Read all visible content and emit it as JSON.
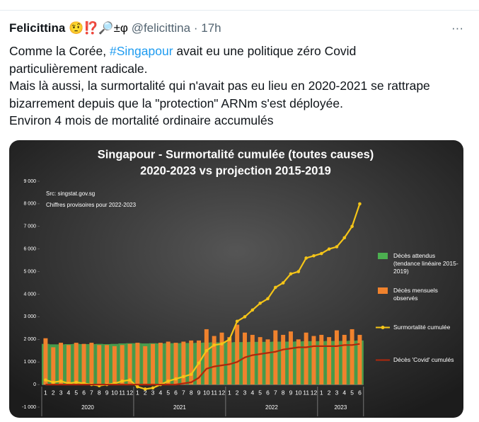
{
  "tweet": {
    "name": "Felicittina",
    "badges": "🤨⁉️🔎±φ",
    "handle": "@felicittina",
    "separator": "·",
    "time": "17h",
    "menu": "···",
    "paragraphs": [
      [
        "Comme la Corée, ",
        "#Singapour",
        " avait eu une politique zéro Covid particulièrement radicale."
      ],
      [
        "Mais là aussi, la surmortalité qui n'avait pas eu lieu en 2020-2021 se rattrape bizarrement depuis que la \"protection\" ARNm s'est déployée."
      ],
      [
        "Environ 4 mois de mortalité ordinaire accumulés"
      ]
    ]
  },
  "chart_data": {
    "type": "combo",
    "title": [
      "Singapour - Surmortalité cumulée (toutes causes)",
      "2020-2023 vs projection 2015-2019"
    ],
    "annotations": [
      "Src: singstat.gov.sg",
      "Chiffres provisoires pour 2022-2023"
    ],
    "categories": [
      "1",
      "2",
      "3",
      "4",
      "5",
      "6",
      "7",
      "8",
      "9",
      "10",
      "11",
      "12",
      "1",
      "2",
      "3",
      "4",
      "5",
      "6",
      "7",
      "8",
      "9",
      "10",
      "11",
      "12",
      "1",
      "2",
      "3",
      "4",
      "5",
      "6",
      "7",
      "8",
      "9",
      "10",
      "11",
      "12",
      "1",
      "2",
      "3",
      "4",
      "5",
      "6"
    ],
    "groups": [
      "2020",
      "2021",
      "2022",
      "2023"
    ],
    "ylim": [
      -1000,
      9000
    ],
    "yticks": [
      {
        "value": -1000,
        "label": "-1 000"
      },
      0,
      {
        "value": 1000,
        "label": "1 000"
      },
      {
        "value": 2000,
        "label": "2 000"
      },
      {
        "value": 3000,
        "label": "3 000"
      },
      {
        "value": 4000,
        "label": "4 000"
      },
      {
        "value": 5000,
        "label": "5 000"
      },
      {
        "value": 6000,
        "label": "6 000"
      },
      {
        "value": 7000,
        "label": "7 000"
      },
      {
        "value": 8000,
        "label": "8 000"
      },
      {
        "value": 9000,
        "label": "9 000"
      }
    ],
    "series": [
      {
        "name": "Décès attendus (tendance linéaire 2015-2019)",
        "type": "bar",
        "color": "#4caf50",
        "values": [
          1800,
          1780,
          1780,
          1790,
          1800,
          1790,
          1790,
          1800,
          1790,
          1800,
          1820,
          1830,
          1830,
          1820,
          1830,
          1820,
          1830,
          1830,
          1840,
          1840,
          1850,
          1860,
          1870,
          1870,
          1870,
          1880,
          1880,
          1890,
          1890,
          1890,
          1900,
          1900,
          1900,
          1910,
          1920,
          1920,
          1920,
          1930,
          1930,
          1930,
          1940,
          1950
        ]
      },
      {
        "name": "Décès mensuels observés",
        "type": "bar",
        "color": "#f0822d",
        "values": [
          2050,
          1650,
          1850,
          1750,
          1850,
          1800,
          1850,
          1750,
          1750,
          1700,
          1750,
          1800,
          1850,
          1700,
          1800,
          1850,
          1900,
          1850,
          1900,
          1950,
          1950,
          2450,
          2150,
          2300,
          2100,
          2650,
          2300,
          2200,
          2100,
          2000,
          2400,
          2200,
          2350,
          2000,
          2300,
          2150,
          2200,
          2100,
          2400,
          2200,
          2450,
          2200
        ]
      },
      {
        "name": "Surmortalité cumulée",
        "type": "line",
        "markers": true,
        "color": "#f5c518",
        "values": [
          200,
          100,
          150,
          50,
          100,
          50,
          0,
          -50,
          0,
          50,
          150,
          200,
          -100,
          -200,
          -150,
          0,
          150,
          250,
          350,
          450,
          950,
          1500,
          1750,
          1800,
          2000,
          2800,
          3000,
          3300,
          3600,
          3800,
          4300,
          4500,
          4900,
          5000,
          5600,
          5700,
          5800,
          6000,
          6100,
          6500,
          7000,
          8000
        ]
      },
      {
        "name": "Décès 'Covid' cumulés",
        "type": "line",
        "markers": false,
        "color": "#b0280c",
        "values": [
          0,
          0,
          0,
          0,
          0,
          0,
          0,
          0,
          0,
          0,
          0,
          0,
          0,
          0,
          0,
          0,
          0,
          0,
          50,
          100,
          300,
          700,
          800,
          850,
          900,
          1000,
          1200,
          1300,
          1350,
          1400,
          1450,
          1550,
          1600,
          1650,
          1650,
          1700,
          1700,
          1700,
          1700,
          1750,
          1750,
          1800
        ]
      }
    ]
  }
}
